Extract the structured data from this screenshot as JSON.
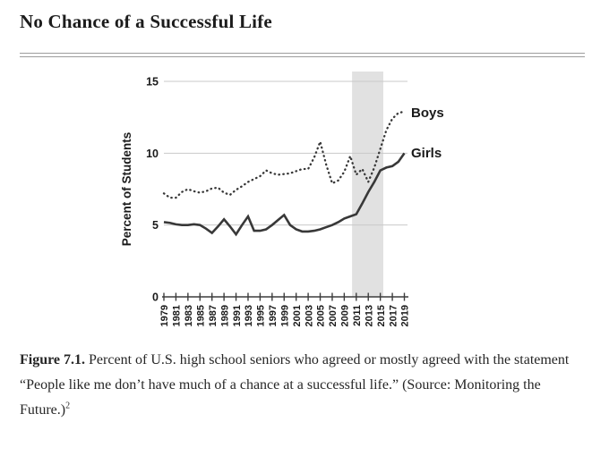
{
  "page": {
    "title": "No Chance of a Successful Life"
  },
  "caption": {
    "label": "Figure 7.1.",
    "text": "Percent of U.S. high school seniors who agreed or mostly agreed with the statement “People like me don’t have much of a chance at a successful life.” (Source: Monitoring the Future.)",
    "footnote": "2"
  },
  "chart_data": {
    "type": "line",
    "title": "No Chance of a Successful Life",
    "xlabel": "",
    "ylabel": "Percent of Students",
    "ylim": [
      0,
      15
    ],
    "yticks": [
      0,
      5,
      10,
      15
    ],
    "grid": "horizontal",
    "xtick_labels": [
      "1979",
      "1981",
      "1983",
      "1985",
      "1987",
      "1989",
      "1991",
      "1993",
      "1995",
      "1997",
      "1999",
      "2001",
      "2003",
      "2005",
      "2007",
      "2009",
      "2011",
      "2013",
      "2015",
      "2017",
      "2019"
    ],
    "x": [
      1979,
      1980,
      1981,
      1982,
      1983,
      1984,
      1985,
      1986,
      1987,
      1988,
      1989,
      1990,
      1991,
      1992,
      1993,
      1994,
      1995,
      1996,
      1997,
      1998,
      1999,
      2000,
      2001,
      2002,
      2003,
      2004,
      2005,
      2006,
      2007,
      2008,
      2009,
      2010,
      2011,
      2012,
      2013,
      2014,
      2015,
      2016,
      2017,
      2018,
      2019
    ],
    "series": [
      {
        "name": "Boys",
        "style": "dotted",
        "values": [
          7.2,
          6.9,
          6.9,
          7.3,
          7.5,
          7.35,
          7.25,
          7.35,
          7.55,
          7.6,
          7.25,
          7.1,
          7.45,
          7.7,
          8.0,
          8.2,
          8.4,
          8.8,
          8.6,
          8.5,
          8.55,
          8.6,
          8.75,
          8.9,
          8.9,
          9.7,
          10.8,
          9.2,
          7.9,
          8.1,
          8.7,
          9.8,
          8.5,
          8.9,
          8.0,
          9.0,
          10.3,
          11.6,
          12.4,
          12.8,
          12.9
        ]
      },
      {
        "name": "Girls",
        "style": "solid",
        "values": [
          5.2,
          5.15,
          5.05,
          5.0,
          5.0,
          5.05,
          5.0,
          4.75,
          4.45,
          4.9,
          5.4,
          4.9,
          4.35,
          5.0,
          5.6,
          4.6,
          4.6,
          4.7,
          5.0,
          5.35,
          5.7,
          5.0,
          4.7,
          4.55,
          4.55,
          4.6,
          4.7,
          4.85,
          5.0,
          5.2,
          5.45,
          5.6,
          5.75,
          6.5,
          7.3,
          8.0,
          8.8,
          9.0,
          9.1,
          9.4,
          10.0
        ]
      }
    ],
    "shaded_region": {
      "x_start": 2010.3,
      "x_end": 2015.5
    },
    "legend_position": "right-of-line-ends",
    "colors": {
      "line": "#383838",
      "grid": "#c9c9c9",
      "axis": "#3d3d3d",
      "band": "#e1e1e1",
      "text": "#1a1a1a"
    }
  }
}
